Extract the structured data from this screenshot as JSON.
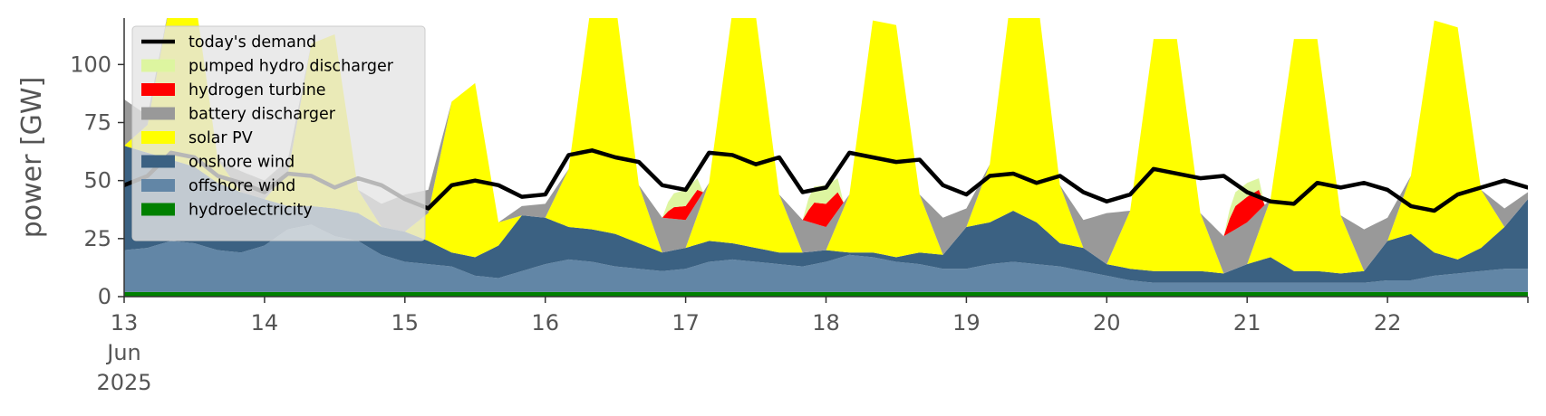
{
  "chart_data": {
    "type": "area",
    "ylabel": "power [GW]",
    "ylim": [
      0,
      120
    ],
    "yticks": [
      0,
      25,
      50,
      75,
      100
    ],
    "xlim": [
      0,
      240
    ],
    "x_unit": "hours since 2025-06-13 00:00",
    "xtick_hours": [
      0,
      24,
      48,
      72,
      96,
      120,
      144,
      168,
      192,
      216
    ],
    "xtick_labels": [
      "13\nJun\n2025",
      "14",
      "15",
      "16",
      "17",
      "18",
      "19",
      "20",
      "21",
      "22"
    ],
    "grid": false,
    "legend_position": "upper-left",
    "stack_order": [
      "hydroelectricity",
      "offshore wind",
      "onshore wind",
      "solar PV",
      "battery discharger",
      "hydrogen turbine",
      "pumped hydro discharger"
    ],
    "legend": [
      {
        "name": "today's demand",
        "kind": "line",
        "color": "#000000"
      },
      {
        "name": "pumped hydro discharger",
        "kind": "patch",
        "color": "#DDF5A0"
      },
      {
        "name": "hydrogen turbine",
        "kind": "patch",
        "color": "#FF0000"
      },
      {
        "name": "battery discharger",
        "kind": "patch",
        "color": "#999999"
      },
      {
        "name": "solar PV",
        "kind": "patch",
        "color": "#FFFF00"
      },
      {
        "name": "onshore wind",
        "kind": "patch",
        "color": "#3B6182"
      },
      {
        "name": "offshore wind",
        "kind": "patch",
        "color": "#6286A6"
      },
      {
        "name": "hydroelectricity",
        "kind": "patch",
        "color": "#008000"
      }
    ],
    "demand": {
      "name": "today's demand",
      "hours": [
        0,
        4,
        8,
        12,
        16,
        20,
        24,
        28,
        32,
        36,
        40,
        44,
        48,
        52,
        56,
        60,
        64,
        68,
        72,
        76,
        80,
        84,
        88,
        92,
        96,
        100,
        104,
        108,
        112,
        116,
        120,
        124,
        128,
        132,
        136,
        140,
        144,
        148,
        152,
        156,
        160,
        164,
        168,
        172,
        176,
        180,
        184,
        188,
        192,
        196,
        200,
        204,
        208,
        212,
        216,
        220,
        224,
        228,
        232,
        236,
        240
      ],
      "values": [
        48,
        52,
        62,
        60,
        52,
        49,
        45,
        53,
        52,
        47,
        51,
        48,
        42,
        38,
        48,
        50,
        48,
        43,
        44,
        61,
        63,
        60,
        58,
        48,
        46,
        62,
        61,
        57,
        60,
        45,
        47,
        62,
        60,
        58,
        59,
        48,
        44,
        52,
        53,
        49,
        52,
        45,
        41,
        44,
        55,
        53,
        51,
        52,
        45,
        41,
        40,
        49,
        47,
        49,
        46,
        39,
        37,
        44,
        47,
        50,
        47
      ]
    },
    "series": [
      {
        "name": "hydroelectricity",
        "color": "#008000",
        "hours": [
          0,
          240
        ],
        "values": [
          2,
          2
        ]
      },
      {
        "name": "offshore wind",
        "color": "#6286A6",
        "hours": [
          0,
          4,
          8,
          12,
          16,
          20,
          24,
          28,
          32,
          36,
          40,
          44,
          48,
          52,
          56,
          60,
          64,
          68,
          72,
          76,
          80,
          84,
          88,
          92,
          96,
          100,
          104,
          108,
          112,
          116,
          120,
          124,
          128,
          132,
          136,
          140,
          144,
          148,
          152,
          156,
          160,
          164,
          168,
          172,
          176,
          180,
          184,
          188,
          192,
          196,
          200,
          204,
          208,
          212,
          216,
          220,
          224,
          228,
          232,
          236,
          240
        ],
        "values": [
          18,
          19,
          22,
          21,
          18,
          17,
          20,
          27,
          29,
          24,
          22,
          16,
          13,
          12,
          11,
          7,
          6,
          9,
          12,
          14,
          13,
          11,
          10,
          9,
          10,
          13,
          14,
          13,
          12,
          11,
          13,
          16,
          15,
          13,
          12,
          10,
          10,
          12,
          13,
          12,
          11,
          9,
          7,
          5,
          4,
          4,
          4,
          4,
          4,
          4,
          4,
          4,
          4,
          4,
          5,
          5,
          7,
          8,
          9,
          10,
          10
        ]
      },
      {
        "name": "onshore wind",
        "color": "#3B6182",
        "hours": [
          0,
          4,
          8,
          12,
          16,
          20,
          24,
          28,
          32,
          36,
          40,
          44,
          48,
          52,
          56,
          60,
          64,
          68,
          72,
          76,
          80,
          84,
          88,
          92,
          96,
          100,
          104,
          108,
          112,
          116,
          120,
          124,
          128,
          132,
          136,
          140,
          144,
          148,
          152,
          156,
          160,
          164,
          168,
          172,
          176,
          180,
          184,
          188,
          192,
          196,
          200,
          204,
          208,
          212,
          216,
          220,
          224,
          228,
          232,
          236,
          240
        ],
        "values": [
          45,
          41,
          35,
          33,
          29,
          26,
          20,
          10,
          8,
          12,
          12,
          12,
          13,
          10,
          6,
          8,
          14,
          24,
          20,
          14,
          14,
          14,
          11,
          8,
          9,
          9,
          7,
          6,
          5,
          6,
          5,
          1,
          2,
          2,
          5,
          6,
          18,
          18,
          22,
          18,
          10,
          10,
          5,
          5,
          5,
          5,
          5,
          4,
          8,
          11,
          5,
          5,
          4,
          5,
          17,
          20,
          10,
          6,
          10,
          18,
          30
        ]
      },
      {
        "name": "solar PV",
        "color": "#FFFF00",
        "hours": [
          0,
          4,
          8,
          12,
          16,
          20,
          24,
          28,
          32,
          36,
          40,
          44,
          48,
          52,
          56,
          60,
          64,
          68,
          72,
          76,
          80,
          84,
          88,
          92,
          96,
          100,
          104,
          108,
          112,
          116,
          120,
          124,
          128,
          132,
          136,
          140,
          144,
          148,
          152,
          156,
          160,
          164,
          168,
          172,
          176,
          180,
          184,
          188,
          192,
          196,
          200,
          204,
          208,
          212,
          216,
          220,
          224,
          228,
          232,
          236,
          240
        ],
        "values": [
          0,
          12,
          70,
          75,
          10,
          0,
          0,
          14,
          70,
          75,
          10,
          0,
          0,
          12,
          65,
          75,
          10,
          0,
          0,
          25,
          100,
          100,
          25,
          0,
          0,
          25,
          100,
          100,
          25,
          0,
          0,
          25,
          100,
          100,
          25,
          0,
          0,
          25,
          100,
          100,
          25,
          0,
          0,
          25,
          100,
          100,
          25,
          0,
          0,
          25,
          100,
          100,
          25,
          0,
          0,
          25,
          100,
          100,
          25,
          0,
          0
        ]
      },
      {
        "name": "battery discharger",
        "color": "#999999",
        "hours": [
          0,
          4,
          8,
          12,
          16,
          20,
          24,
          28,
          32,
          36,
          40,
          44,
          48,
          52,
          56,
          60,
          64,
          68,
          72,
          76,
          80,
          84,
          88,
          92,
          96,
          100,
          104,
          108,
          112,
          116,
          120,
          124,
          128,
          132,
          136,
          140,
          144,
          148,
          152,
          156,
          160,
          164,
          168,
          172,
          176,
          180,
          184,
          188,
          192,
          196,
          200,
          204,
          208,
          212,
          216,
          220,
          224,
          228,
          232,
          236,
          240
        ],
        "values": [
          20,
          4,
          0,
          0,
          0,
          9,
          8,
          6,
          0,
          0,
          0,
          10,
          16,
          10,
          0,
          0,
          0,
          4,
          6,
          0,
          0,
          0,
          0,
          15,
          12,
          0,
          0,
          0,
          0,
          14,
          10,
          0,
          0,
          0,
          0,
          16,
          8,
          0,
          0,
          0,
          0,
          12,
          22,
          0,
          0,
          0,
          0,
          16,
          18,
          0,
          0,
          0,
          0,
          18,
          10,
          0,
          0,
          0,
          0,
          8,
          3
        ]
      },
      {
        "name": "hydrogen turbine",
        "color": "#FF0000",
        "hours": [
          0,
          92,
          93,
          94,
          96,
          98,
          99,
          116,
          117,
          118,
          120,
          122,
          123,
          188,
          189,
          190,
          192,
          194,
          195,
          240
        ],
        "values": [
          0,
          0,
          3,
          5,
          6,
          5,
          0,
          0,
          5,
          9,
          10,
          8,
          0,
          0,
          6,
          10,
          11,
          9,
          0,
          0
        ]
      },
      {
        "name": "pumped hydro discharger",
        "color": "#DDF5A0",
        "hours": [
          0,
          92,
          93,
          94,
          96,
          98,
          99,
          116,
          117,
          118,
          120,
          122,
          123,
          188,
          189,
          190,
          192,
          194,
          195,
          240
        ],
        "values": [
          0,
          0,
          4,
          6,
          7,
          5,
          0,
          0,
          5,
          7,
          8,
          6,
          0,
          0,
          4,
          6,
          6,
          5,
          0,
          0
        ]
      }
    ]
  }
}
